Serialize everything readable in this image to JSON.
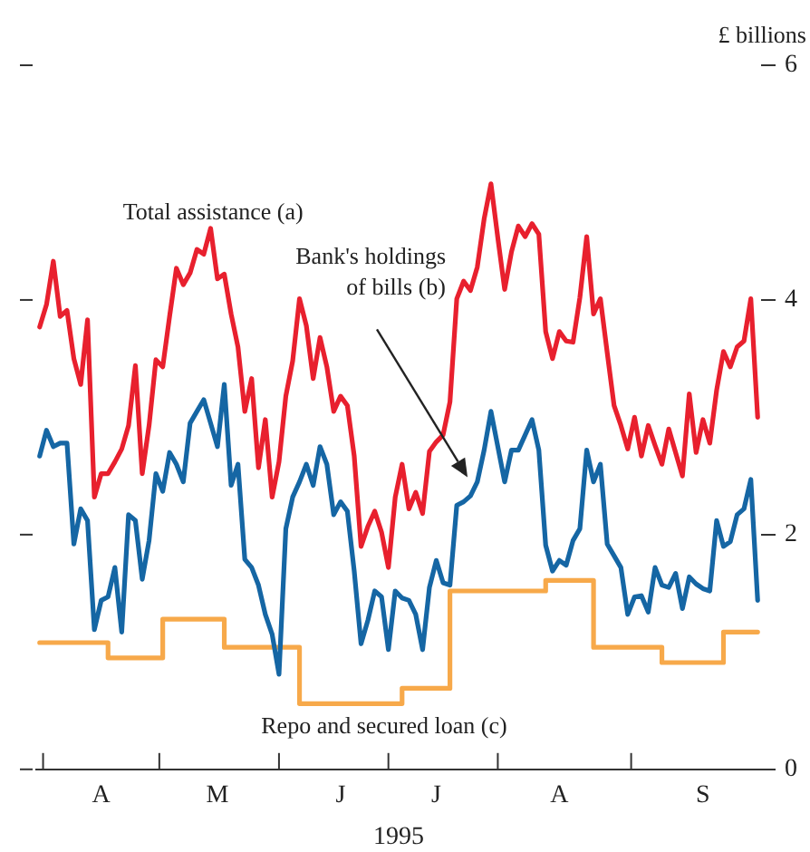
{
  "chart_data": {
    "type": "line",
    "xlabel": "1995",
    "ylabel": "£ billions",
    "legend": false,
    "marker": "none",
    "categories": [
      null,
      null,
      null,
      null,
      null,
      null,
      null,
      null,
      null,
      "A",
      null,
      null,
      null,
      null,
      null,
      null,
      null,
      null,
      null,
      null,
      null,
      null,
      null,
      null,
      null,
      null,
      "M",
      null,
      null,
      null,
      null,
      null,
      null,
      null,
      null,
      null,
      null,
      null,
      null,
      null,
      null,
      null,
      null,
      null,
      "J",
      null,
      null,
      null,
      null,
      null,
      null,
      null,
      null,
      null,
      null,
      null,
      null,
      null,
      "J",
      null,
      null,
      null,
      null,
      null,
      null,
      null,
      null,
      null,
      null,
      null,
      null,
      null,
      null,
      null,
      null,
      null,
      "A",
      null,
      null,
      null,
      null,
      null,
      null,
      null,
      null,
      null,
      null,
      null,
      null,
      null,
      null,
      null,
      null,
      null,
      null,
      null,
      null,
      "S",
      null,
      null,
      null,
      null,
      null,
      null,
      null,
      null
    ],
    "ylim": [
      0,
      6
    ],
    "yticks": [
      0,
      2,
      4,
      6
    ],
    "series": [
      {
        "name": "Total assistance (a)",
        "type": "line",
        "color": "#e8202e",
        "values": [
          3.77,
          3.96,
          4.33,
          3.86,
          3.91,
          3.5,
          3.28,
          3.83,
          2.32,
          2.52,
          2.52,
          2.62,
          2.73,
          2.93,
          3.44,
          2.52,
          2.93,
          3.49,
          3.43,
          3.86,
          4.27,
          4.13,
          4.23,
          4.43,
          4.39,
          4.61,
          4.18,
          4.22,
          3.88,
          3.6,
          3.05,
          3.33,
          2.57,
          2.98,
          2.32,
          2.62,
          3.18,
          3.48,
          4.01,
          3.78,
          3.33,
          3.68,
          3.43,
          3.05,
          3.18,
          3.1,
          2.67,
          1.9,
          2.07,
          2.2,
          2.02,
          1.72,
          2.32,
          2.6,
          2.22,
          2.36,
          2.18,
          2.71,
          2.79,
          2.85,
          3.13,
          4.01,
          4.16,
          4.08,
          4.28,
          4.69,
          4.99,
          4.53,
          4.09,
          4.41,
          4.63,
          4.54,
          4.65,
          4.56,
          3.73,
          3.5,
          3.73,
          3.65,
          3.64,
          4.02,
          4.54,
          3.88,
          4.01,
          3.55,
          3.1,
          2.93,
          2.73,
          3.0,
          2.67,
          2.93,
          2.76,
          2.6,
          2.9,
          2.7,
          2.5,
          3.2,
          2.7,
          2.98,
          2.78,
          3.23,
          3.56,
          3.43,
          3.6,
          3.65,
          4.01,
          3.0
        ]
      },
      {
        "name": "Bank's holdings of bills (b)",
        "type": "line",
        "color": "#1566a4",
        "values": [
          2.67,
          2.89,
          2.75,
          2.78,
          2.78,
          1.92,
          2.22,
          2.12,
          1.19,
          1.44,
          1.47,
          1.72,
          1.17,
          2.17,
          2.12,
          1.62,
          1.95,
          2.52,
          2.37,
          2.7,
          2.6,
          2.45,
          2.95,
          3.05,
          3.15,
          2.95,
          2.75,
          3.28,
          2.42,
          2.6,
          1.79,
          1.72,
          1.57,
          1.32,
          1.15,
          0.81,
          2.05,
          2.32,
          2.45,
          2.6,
          2.42,
          2.75,
          2.6,
          2.17,
          2.28,
          2.2,
          1.69,
          1.07,
          1.27,
          1.52,
          1.47,
          1.02,
          1.52,
          1.46,
          1.44,
          1.32,
          1.02,
          1.55,
          1.78,
          1.59,
          1.57,
          2.25,
          2.28,
          2.33,
          2.45,
          2.72,
          3.05,
          2.75,
          2.45,
          2.72,
          2.72,
          2.85,
          2.98,
          2.72,
          1.91,
          1.69,
          1.78,
          1.74,
          1.95,
          2.05,
          2.72,
          2.45,
          2.6,
          1.92,
          1.82,
          1.72,
          1.32,
          1.47,
          1.48,
          1.34,
          1.72,
          1.57,
          1.55,
          1.67,
          1.37,
          1.64,
          1.58,
          1.54,
          1.52,
          2.12,
          1.9,
          1.94,
          2.17,
          2.22,
          2.47,
          1.44
        ]
      },
      {
        "name": "Repo and secured loan (c)",
        "type": "step",
        "color": "#f7a94a",
        "values": [
          1.08,
          1.08,
          1.08,
          1.08,
          1.08,
          1.08,
          1.08,
          1.08,
          1.08,
          1.08,
          0.95,
          0.95,
          0.95,
          0.95,
          0.95,
          0.95,
          0.95,
          0.95,
          1.28,
          1.28,
          1.28,
          1.28,
          1.28,
          1.28,
          1.28,
          1.28,
          1.28,
          1.04,
          1.04,
          1.04,
          1.04,
          1.04,
          1.04,
          1.04,
          1.04,
          1.04,
          1.04,
          1.04,
          0.56,
          0.56,
          0.56,
          0.56,
          0.56,
          0.56,
          0.56,
          0.56,
          0.56,
          0.56,
          0.56,
          0.56,
          0.56,
          0.56,
          0.56,
          0.69,
          0.69,
          0.69,
          0.69,
          0.69,
          0.69,
          0.69,
          1.52,
          1.52,
          1.52,
          1.52,
          1.52,
          1.52,
          1.52,
          1.52,
          1.52,
          1.52,
          1.52,
          1.52,
          1.52,
          1.52,
          1.61,
          1.61,
          1.61,
          1.61,
          1.61,
          1.61,
          1.61,
          1.04,
          1.04,
          1.04,
          1.04,
          1.04,
          1.04,
          1.04,
          1.04,
          1.04,
          1.04,
          0.91,
          0.91,
          0.91,
          0.91,
          0.91,
          0.91,
          0.91,
          0.91,
          0.91,
          1.17,
          1.17,
          1.17,
          1.17,
          1.17,
          1.17
        ]
      }
    ]
  }
}
